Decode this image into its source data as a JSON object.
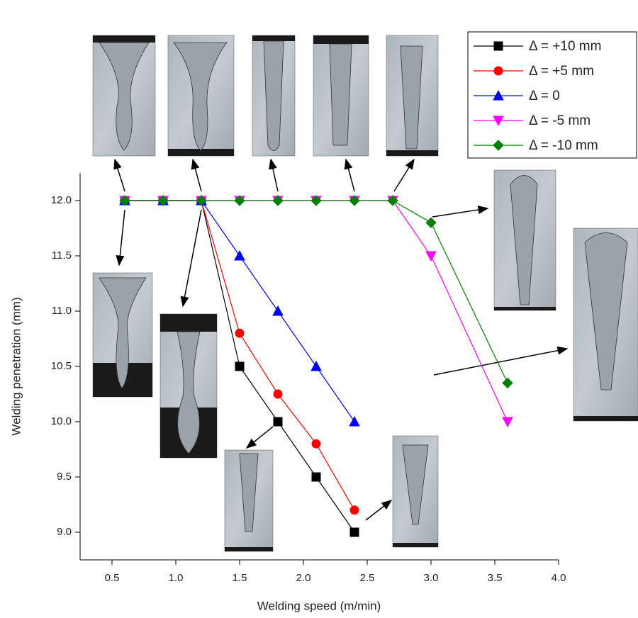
{
  "chart_data": {
    "type": "line",
    "xlabel": "Welding speed (m/min)",
    "ylabel": "Welding penetration (mm)",
    "xlim": [
      0.25,
      4.0
    ],
    "ylim": [
      8.75,
      12.25
    ],
    "xticks": [
      0.5,
      {
        "value": 1.0,
        "label": "1.0"
      },
      1.5,
      {
        "value": 2.0,
        "label": "2.0"
      },
      2.5,
      {
        "value": 3.0,
        "label": "3.0"
      },
      3.5,
      {
        "value": 4.0,
        "label": "4.0"
      }
    ],
    "yticks": [
      {
        "value": 9.0,
        "label": "9.0"
      },
      9.5,
      {
        "value": 10.0,
        "label": "10.0"
      },
      10.5,
      {
        "value": 11.0,
        "label": "11.0"
      },
      11.5,
      {
        "value": 12.0,
        "label": "12.0"
      }
    ],
    "legend": "upper right",
    "series": [
      {
        "name": "Δ = +10 mm",
        "color": "#000000",
        "marker": "square",
        "x": [
          0.6,
          0.9,
          1.2,
          1.5,
          1.8,
          2.1,
          2.4
        ],
        "values": [
          12.0,
          12.0,
          12.0,
          10.5,
          10.0,
          9.5,
          9.0
        ]
      },
      {
        "name": "Δ = +5 mm",
        "color": "#ff0000",
        "marker": "circle",
        "x": [
          0.6,
          0.9,
          1.2,
          1.5,
          1.8,
          2.1,
          2.4
        ],
        "values": [
          12.0,
          12.0,
          12.0,
          10.8,
          10.25,
          9.8,
          9.2
        ]
      },
      {
        "name": "Δ = 0",
        "color": "#0000ff",
        "marker": "triangle-up",
        "x": [
          0.6,
          0.9,
          1.2,
          1.5,
          1.8,
          2.1,
          2.4
        ],
        "values": [
          12.0,
          12.0,
          12.0,
          11.5,
          11.0,
          10.5,
          10.0
        ]
      },
      {
        "name": "Δ = -5 mm",
        "color": "#ff00ff",
        "marker": "triangle-down",
        "x": [
          0.6,
          0.9,
          1.2,
          1.5,
          1.8,
          2.1,
          2.4,
          2.7,
          3.0,
          3.6
        ],
        "values": [
          12.0,
          12.0,
          12.0,
          12.0,
          12.0,
          12.0,
          12.0,
          12.0,
          11.5,
          10.0
        ]
      },
      {
        "name": "Δ = -10 mm",
        "color": "#008000",
        "marker": "diamond",
        "x": [
          0.6,
          0.9,
          1.2,
          1.5,
          1.8,
          2.1,
          2.4,
          2.7,
          3.0,
          3.6
        ],
        "values": [
          12.0,
          12.0,
          12.0,
          12.0,
          12.0,
          12.0,
          12.0,
          12.0,
          11.8,
          10.35
        ]
      }
    ]
  }
}
